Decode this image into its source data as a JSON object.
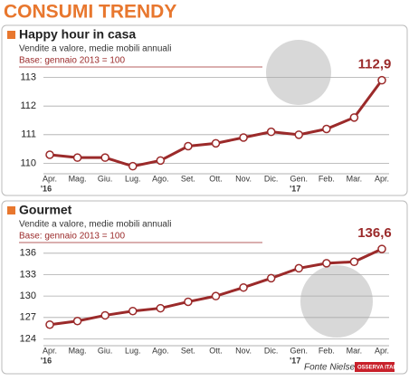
{
  "title": "CONSUMI TRENDY",
  "source": "Fonte Nielsen",
  "logo": "OSSERVA ITALIA",
  "chart_data": [
    {
      "type": "line",
      "title": "Happy hour in casa",
      "subtitle": "Vendite a valore, medie mobili annuali",
      "note": "Base: gennaio 2013 = 100",
      "categories": [
        "Apr.",
        "Mag.",
        "Giu.",
        "Lug.",
        "Ago.",
        "Set.",
        "Ott.",
        "Nov.",
        "Dic.",
        "Gen.",
        "Feb.",
        "Mar.",
        "Apr."
      ],
      "year_labels": [
        "'16",
        null,
        null,
        null,
        null,
        null,
        null,
        null,
        null,
        "'17",
        null,
        null,
        null
      ],
      "values": [
        110.3,
        110.2,
        110.2,
        109.9,
        110.1,
        110.6,
        110.7,
        110.9,
        111.1,
        111.0,
        111.2,
        111.6,
        112.9
      ],
      "value_labels": [
        null,
        null,
        null,
        null,
        null,
        null,
        null,
        null,
        null,
        null,
        null,
        null,
        "112,9"
      ],
      "color": "#9b2a2a",
      "ylim": [
        109.7,
        113.3
      ],
      "yticks": [
        110,
        111,
        112,
        113
      ],
      "grid": true
    },
    {
      "type": "line",
      "title": "Gourmet",
      "subtitle": "Vendite a valore, medie mobili annuali",
      "note": "Base: gennaio 2013 = 100",
      "categories": [
        "Apr.",
        "Mag.",
        "Giu.",
        "Lug.",
        "Ago.",
        "Set.",
        "Ott.",
        "Nov.",
        "Dic.",
        "Gen.",
        "Feb.",
        "Mar.",
        "Apr."
      ],
      "year_labels": [
        "'16",
        null,
        null,
        null,
        null,
        null,
        null,
        null,
        null,
        "'17",
        null,
        null,
        null
      ],
      "values": [
        126.0,
        126.5,
        127.3,
        127.9,
        128.3,
        129.2,
        130.0,
        131.2,
        132.5,
        133.9,
        134.6,
        134.8,
        136.6
      ],
      "value_labels": [
        null,
        null,
        null,
        null,
        null,
        null,
        null,
        null,
        null,
        null,
        null,
        null,
        "136,6"
      ],
      "color": "#9b2a2a",
      "ylim": [
        123.3,
        137.5
      ],
      "yticks": [
        124,
        127,
        130,
        133,
        136
      ],
      "grid": true
    }
  ]
}
